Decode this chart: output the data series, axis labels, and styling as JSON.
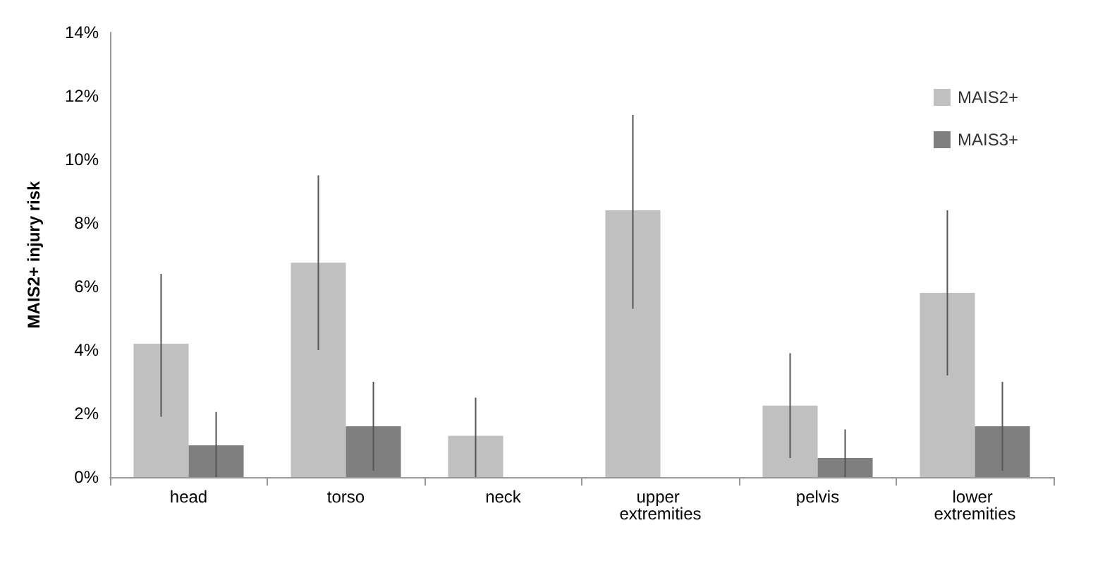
{
  "chart_data": {
    "type": "bar",
    "ylabel": "MAIS2+ injury risk",
    "categories": [
      "head",
      "torso",
      "neck",
      "upper extremities",
      "pelvis",
      "lower extremities"
    ],
    "series": [
      {
        "name": "MAIS2+",
        "color": "#c0c0c0",
        "values": [
          4.2,
          6.75,
          1.3,
          8.4,
          2.25,
          5.8
        ],
        "errors": [
          [
            1.9,
            6.4
          ],
          [
            4.0,
            9.5
          ],
          [
            0,
            2.5
          ],
          [
            5.3,
            11.4
          ],
          [
            0.6,
            3.9
          ],
          [
            3.2,
            8.4
          ]
        ]
      },
      {
        "name": "MAIS3+",
        "color": "#7f7f7f",
        "values": [
          1.0,
          1.6,
          null,
          null,
          0.6,
          1.6
        ],
        "errors": [
          [
            0,
            2.05
          ],
          [
            0.2,
            3.0
          ],
          null,
          null,
          [
            0,
            1.5
          ],
          [
            0.2,
            3.0
          ]
        ]
      }
    ],
    "ylim": [
      0,
      14
    ],
    "yticks": [
      {
        "value": 0,
        "label": "0%"
      },
      {
        "value": 2,
        "label": "2%"
      },
      {
        "value": 4,
        "label": "4%"
      },
      {
        "value": 6,
        "label": "6%"
      },
      {
        "value": 8,
        "label": "8%"
      },
      {
        "value": 10,
        "label": "10%"
      },
      {
        "value": 12,
        "label": "12%"
      },
      {
        "value": 14,
        "label": "14%"
      }
    ],
    "grid": false,
    "legend": "top right"
  }
}
